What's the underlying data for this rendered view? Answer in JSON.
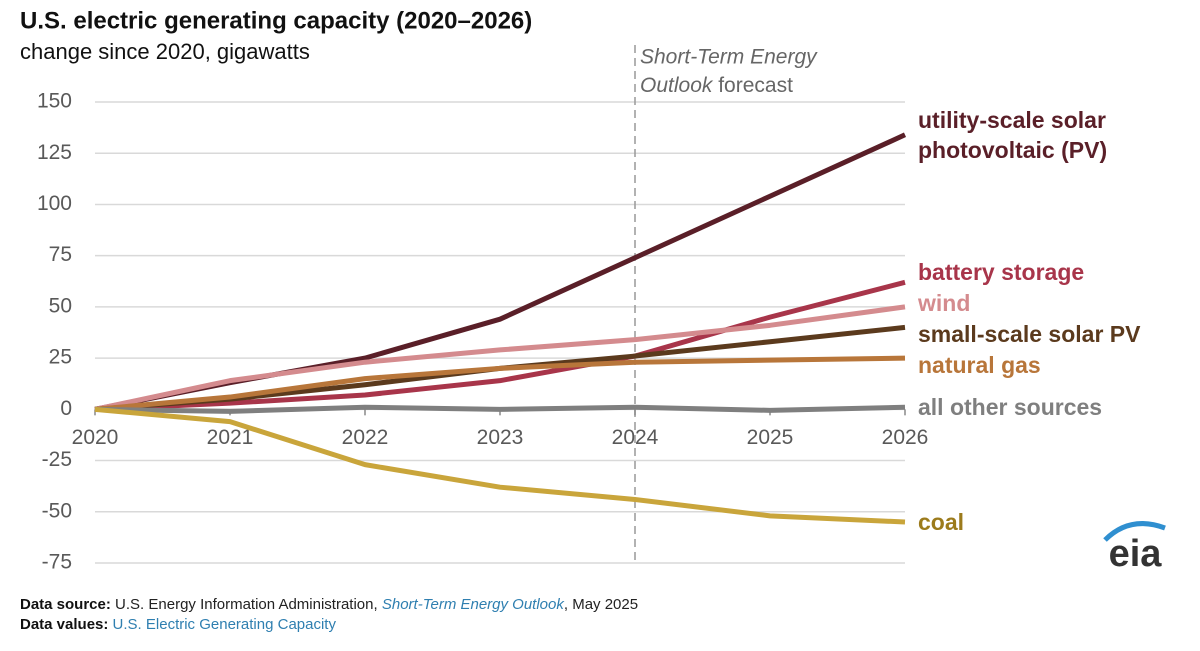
{
  "chart_data": {
    "type": "line",
    "title": "U.S. electric generating capacity (2020–2026)",
    "subtitle": "change since 2020, gigawatts",
    "x": [
      2020,
      2021,
      2022,
      2023,
      2024,
      2025,
      2026
    ],
    "xlim": [
      2020,
      2026
    ],
    "xticks": [
      2020,
      2021,
      2022,
      2023,
      2024,
      2025,
      2026
    ],
    "ylim": [
      -75,
      150
    ],
    "yticks": [
      -75,
      -50,
      -25,
      0,
      25,
      50,
      75,
      100,
      125,
      150
    ],
    "grid": true,
    "forecast_start": 2024,
    "forecast_note": {
      "italic_1": "Short-Term Energy",
      "italic_2": "Outlook",
      "plain": "forecast"
    },
    "series": [
      {
        "name": "utility-scale solar photovoltaic (PV)",
        "color": "#5a1f28",
        "values": [
          0,
          13,
          25,
          44,
          74,
          104,
          134
        ]
      },
      {
        "name": "battery storage",
        "color": "#a8354a",
        "values": [
          0,
          3,
          7,
          14,
          26,
          45,
          62
        ]
      },
      {
        "name": "wind",
        "color": "#d48b8e",
        "values": [
          0,
          14,
          23,
          29,
          34,
          41,
          50
        ]
      },
      {
        "name": "small-scale solar PV",
        "color": "#5b3a1d",
        "values": [
          0,
          5,
          12,
          20,
          26,
          33,
          40
        ]
      },
      {
        "name": "natural gas",
        "color": "#b8763a",
        "values": [
          0,
          6,
          15,
          20,
          23,
          24,
          25
        ]
      },
      {
        "name": "all other sources",
        "color": "#7f7f7f",
        "values": [
          0,
          -1,
          1,
          0,
          1,
          -0.5,
          1
        ]
      },
      {
        "name": "coal",
        "color": "#c9a53b",
        "label_color": "#9c7b1c",
        "values": [
          0,
          -6,
          -27,
          -38,
          -44,
          -52,
          -55
        ]
      }
    ],
    "source": {
      "label": "Data source:",
      "text": "U.S. Energy Information Administration, ",
      "link": "Short-Term Energy Outlook",
      "suffix": ", May 2025"
    },
    "values_note": {
      "label": "Data values:",
      "link": "U.S. Electric Generating Capacity"
    },
    "logo": "eia"
  }
}
